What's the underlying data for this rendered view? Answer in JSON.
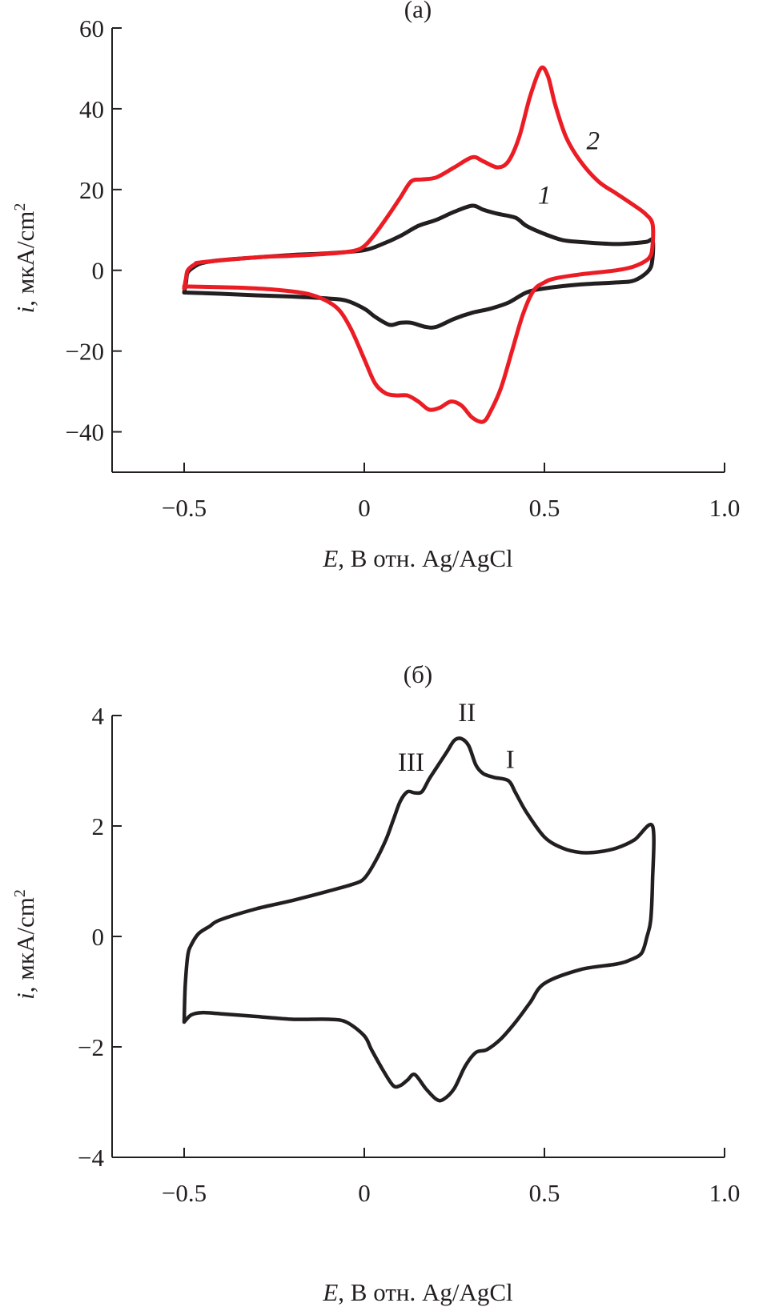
{
  "chart_data": [
    {
      "type": "line",
      "title": "(a)",
      "xlabel_var": "E",
      "xlabel_rest": ", В отн. Ag/AgCl",
      "ylabel_var": "i",
      "ylabel_rest": ", мкА/cm",
      "ylabel_sup": "2",
      "xlim": [
        -0.7,
        1.0
      ],
      "ylim": [
        -50,
        60
      ],
      "xticks": [
        -0.5,
        0,
        0.5,
        1.0
      ],
      "xtick_labels": [
        "−0.5",
        "0",
        "0.5",
        "1.0"
      ],
      "yticks": [
        60,
        40,
        20,
        0,
        -20,
        -40
      ],
      "ytick_labels": [
        "60",
        "40",
        "20",
        "0",
        "−20",
        "−40"
      ],
      "grid": false,
      "series": [
        {
          "name": "1",
          "color": "#231f20",
          "x": [
            -0.5,
            -0.495,
            -0.49,
            -0.47,
            -0.45,
            -0.4,
            -0.3,
            -0.2,
            -0.1,
            0,
            0.05,
            0.1,
            0.15,
            0.2,
            0.25,
            0.3,
            0.33,
            0.37,
            0.42,
            0.45,
            0.5,
            0.55,
            0.6,
            0.7,
            0.78,
            0.8,
            0.8,
            0.79,
            0.75,
            0.7,
            0.6,
            0.5,
            0.45,
            0.4,
            0.35,
            0.3,
            0.25,
            0.2,
            0.17,
            0.13,
            0.1,
            0.07,
            0.03,
            0,
            -0.05,
            -0.1,
            -0.2,
            -0.3,
            -0.4,
            -0.5
          ],
          "y": [
            -5.5,
            -3,
            -0.5,
            1,
            1.8,
            2.5,
            3.2,
            3.8,
            4.2,
            5,
            6.5,
            8.5,
            11,
            12.5,
            14.5,
            16,
            15,
            14,
            13,
            11,
            9,
            7.5,
            7,
            6.5,
            7,
            7.5,
            3,
            0,
            -2.5,
            -3,
            -3.5,
            -4.5,
            -5.5,
            -8,
            -9.5,
            -10.5,
            -12,
            -14,
            -14,
            -13,
            -13,
            -13.5,
            -11.5,
            -9.5,
            -7.5,
            -7,
            -6.5,
            -6.2,
            -5.8,
            -5.5
          ]
        },
        {
          "name": "2",
          "color": "#ec1c24",
          "x": [
            -0.5,
            -0.495,
            -0.49,
            -0.47,
            -0.45,
            -0.3,
            -0.2,
            -0.1,
            -0.03,
            0,
            0.03,
            0.07,
            0.1,
            0.13,
            0.16,
            0.2,
            0.25,
            0.3,
            0.33,
            0.37,
            0.4,
            0.43,
            0.46,
            0.49,
            0.51,
            0.53,
            0.56,
            0.6,
            0.65,
            0.7,
            0.75,
            0.78,
            0.8,
            0.8,
            0.79,
            0.75,
            0.7,
            0.6,
            0.53,
            0.5,
            0.47,
            0.44,
            0.41,
            0.38,
            0.35,
            0.33,
            0.3,
            0.27,
            0.24,
            0.21,
            0.18,
            0.15,
            0.12,
            0.09,
            0.06,
            0.03,
            0,
            -0.04,
            -0.08,
            -0.15,
            -0.25,
            -0.35,
            -0.5
          ],
          "y": [
            -4.5,
            -2,
            0,
            1.5,
            2,
            3.2,
            3.6,
            4.1,
            4.8,
            6,
            9,
            14,
            18,
            22,
            22.5,
            23,
            25.5,
            28,
            27,
            25.5,
            27,
            33,
            43,
            50,
            48,
            41,
            33,
            27,
            22,
            19,
            16,
            14,
            11.5,
            6,
            3,
            1,
            0,
            -1,
            -2,
            -3,
            -5,
            -11,
            -20,
            -29,
            -35,
            -37.5,
            -36.5,
            -33.5,
            -32.5,
            -34,
            -34.5,
            -32.5,
            -31,
            -31,
            -30.5,
            -28,
            -22,
            -14,
            -9,
            -6,
            -4.8,
            -4.3,
            -4
          ]
        }
      ],
      "annotations": [
        {
          "text": "1",
          "x": 0.5,
          "y": 16.5,
          "italic": true
        },
        {
          "text": "2",
          "x": 0.635,
          "y": 30,
          "italic": true
        }
      ]
    },
    {
      "type": "line",
      "title": "(б)",
      "xlabel_var": "E",
      "xlabel_rest": ", В отн. Ag/AgCl",
      "ylabel_var": "i",
      "ylabel_rest": ", мкА/cm",
      "ylabel_sup": "2",
      "xlim": [
        -0.7,
        1.0
      ],
      "ylim": [
        -4,
        4
      ],
      "xticks": [
        -0.5,
        0,
        0.5,
        1.0
      ],
      "xtick_labels": [
        "−0.5",
        "0",
        "0.5",
        "1.0"
      ],
      "yticks": [
        4,
        2,
        0,
        -2,
        -4
      ],
      "ytick_labels": [
        "4",
        "2",
        "0",
        "−2",
        "−4"
      ],
      "grid": false,
      "series": [
        {
          "color": "#231f20",
          "x": [
            -0.5,
            -0.497,
            -0.49,
            -0.48,
            -0.46,
            -0.43,
            -0.4,
            -0.3,
            -0.2,
            -0.1,
            -0.03,
            0,
            0.03,
            0.06,
            0.08,
            0.1,
            0.12,
            0.14,
            0.16,
            0.18,
            0.2,
            0.23,
            0.25,
            0.27,
            0.29,
            0.31,
            0.33,
            0.36,
            0.4,
            0.42,
            0.45,
            0.5,
            0.55,
            0.6,
            0.65,
            0.7,
            0.75,
            0.8,
            0.8,
            0.795,
            0.785,
            0.77,
            0.74,
            0.7,
            0.6,
            0.5,
            0.46,
            0.42,
            0.38,
            0.34,
            0.31,
            0.28,
            0.25,
            0.22,
            0.2,
            0.17,
            0.14,
            0.12,
            0.1,
            0.08,
            0.05,
            0.02,
            0,
            -0.05,
            -0.1,
            -0.2,
            -0.3,
            -0.4,
            -0.45,
            -0.48,
            -0.5
          ],
          "y": [
            -1.55,
            -0.9,
            -0.35,
            -0.15,
            0.05,
            0.18,
            0.3,
            0.5,
            0.65,
            0.82,
            0.95,
            1.05,
            1.35,
            1.75,
            2.1,
            2.45,
            2.62,
            2.6,
            2.62,
            2.85,
            3.05,
            3.35,
            3.55,
            3.58,
            3.45,
            3.1,
            2.95,
            2.88,
            2.82,
            2.6,
            2.25,
            1.8,
            1.6,
            1.52,
            1.53,
            1.6,
            1.75,
            2.0,
            1.0,
            0.3,
            0.0,
            -0.3,
            -0.42,
            -0.5,
            -0.6,
            -0.85,
            -1.2,
            -1.55,
            -1.85,
            -2.05,
            -2.1,
            -2.35,
            -2.75,
            -2.95,
            -2.95,
            -2.75,
            -2.5,
            -2.6,
            -2.7,
            -2.7,
            -2.4,
            -2.05,
            -1.8,
            -1.55,
            -1.5,
            -1.5,
            -1.45,
            -1.4,
            -1.38,
            -1.42,
            -1.55
          ]
        }
      ],
      "annotations": [
        {
          "text": "III",
          "x": 0.13,
          "y": 3.0,
          "italic": false
        },
        {
          "text": "II",
          "x": 0.285,
          "y": 3.9,
          "italic": false
        },
        {
          "text": "I",
          "x": 0.405,
          "y": 3.05,
          "italic": false
        }
      ]
    }
  ]
}
